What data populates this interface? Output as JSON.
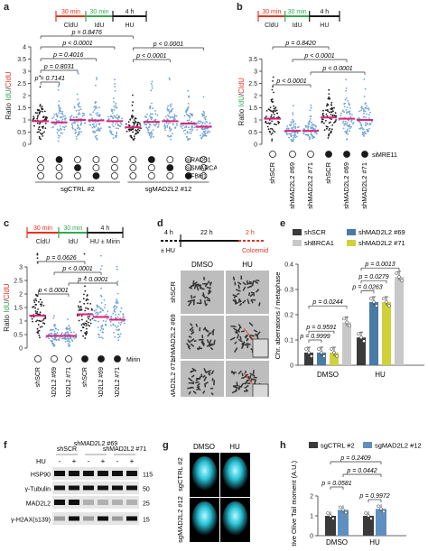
{
  "colors": {
    "red": "#e8301f",
    "green": "#33a852",
    "blue_dots": "#6fa3d8",
    "black": "#1a1a1a",
    "magenta": "#e0217b",
    "gray": "#8c8c8c",
    "scr": "#3a3a3a",
    "brca1": "#c8c8c8",
    "mad69": "#4a7aa6",
    "mad71": "#cfd13a",
    "sg": "#3a3a3a",
    "sgmad": "#5f8fc0"
  },
  "panels": {
    "a": {
      "letter": "a",
      "timeline": {
        "seg1": "30 min",
        "seg2": "30 min",
        "seg3": "4 h",
        "lab1": "CldU",
        "lab2": "IdU",
        "lab3": "HU"
      },
      "ylabel_pre": "Ratio ",
      "ylabel_a": "IdU",
      "ylabel_b": "/",
      "ylabel_c": "CldU",
      "yticks": [
        "0",
        "0.5",
        "1",
        "1.5",
        "2",
        "2.5",
        "3",
        "3.5",
        "4"
      ],
      "pvals_left": [
        "p < 0.0001",
        "p = 0.4016",
        "p = 0.8031",
        "p = 0.7141"
      ],
      "pvals_right": [
        "p = 0.8476",
        "p < 0.0001",
        "p < 0.0001"
      ],
      "rows": [
        "siRAD51",
        "siSMARCAL1",
        "siFBH1"
      ],
      "groups": [
        "sgCTRL #2",
        "sgMAD2L2 #12"
      ],
      "means": [
        0.95,
        0.9,
        1.0,
        0.98,
        0.95,
        0.7,
        0.92,
        0.95,
        0.85,
        0.72
      ]
    },
    "b": {
      "letter": "b",
      "timeline": {
        "seg1": "30 min",
        "seg2": "30 min",
        "seg3": "4 h",
        "lab1": "CldU",
        "lab2": "IdU",
        "lab3": "HU"
      },
      "ylabel_pre": "Ratio ",
      "ylabel_a": "IdU",
      "ylabel_b": "/",
      "ylabel_c": "CldU",
      "yticks": [
        "0",
        "0.5",
        "1",
        "1.5",
        "2",
        "2.5",
        "3",
        "3.5"
      ],
      "pvals": [
        "p = 0.8420",
        "p < 0.0001",
        "p < 0.0001",
        "p < 0.0001"
      ],
      "xlabels": [
        "shSCR",
        "shMAD2L2 #69",
        "shMAD2L2 #71",
        "shSCR",
        "shMAD2L2 #69",
        "shMAD2L2 #71"
      ],
      "extra": "siMRE11",
      "means": [
        1.05,
        0.55,
        0.55,
        1.1,
        1.05,
        1.0
      ]
    },
    "c": {
      "letter": "c",
      "timeline": {
        "seg1": "30 min",
        "seg2": "30 min",
        "seg3": "4 h",
        "lab1": "CldU",
        "lab2": "IdU",
        "lab3": "HU ± Mirin"
      },
      "ylabel_pre": "Ratio ",
      "ylabel_a": "IdU",
      "ylabel_b": "/",
      "ylabel_c": "CldU",
      "yticks": [
        "0",
        "0.5",
        "1",
        "1.5",
        "2",
        "2.5",
        "3"
      ],
      "pvals": [
        "p = 0.0626",
        "p < 0.0001",
        "p < 0.0001",
        "p < 0.0001"
      ],
      "xlabels": [
        "shSCR",
        "shMAD2L2 #69",
        "shMAD2L2 #71",
        "shSCR",
        "shMAD2L2 #69",
        "shMAD2L2 #71"
      ],
      "extra": "Mirin",
      "means": [
        1.2,
        0.45,
        0.45,
        1.25,
        1.15,
        1.05
      ]
    },
    "d": {
      "letter": "d",
      "t1": "4 h",
      "t2": "22 h",
      "t3": "2 h",
      "l1": "± HU",
      "l3": "Colcemid",
      "cols": [
        "DMSO",
        "HU"
      ],
      "rows": [
        "shSCR",
        "shMAD2L2 #69",
        "shMAD2L2 #71"
      ]
    },
    "e": {
      "letter": "e",
      "legend": [
        "shSCR",
        "shMAD2L2 #69",
        "shBRCA1",
        "shMAD2L2 #71"
      ],
      "ylabel": "Chr. aberrations / metaphase",
      "yticks": [
        "0",
        "0.1",
        "0.2",
        "0.3",
        "0.4"
      ],
      "xlabels": [
        "DMSO",
        "HU"
      ],
      "pvals": [
        "p = 0.0244",
        "p = 0.9591",
        "p = 0.9999",
        "p = 0.0013",
        "p = 0.0279",
        "p = 0.0263"
      ]
    },
    "f": {
      "letter": "f",
      "cols": [
        "shSCR",
        "shMAD2L2 #69",
        "shMAD2L2 #71"
      ],
      "hu_label": "HU",
      "signs": [
        "-",
        "+",
        "-",
        "+",
        "-",
        "+"
      ],
      "rows": [
        "HSP90",
        "γ-Tubulin",
        "MAD2L2",
        "γ-H2AX(s139)"
      ],
      "kda": [
        "115",
        "50",
        "25",
        "15"
      ]
    },
    "g": {
      "letter": "g",
      "cols": [
        "DMSO",
        "HU"
      ],
      "rows": [
        "sgCTRL #2",
        "sgMAD2L2 #12"
      ]
    },
    "h": {
      "letter": "h",
      "legend": [
        "sgCTRL #2",
        "sgMAD2L2 #12"
      ],
      "ylabel": "Relative Olive Tail moment (A.U.)",
      "yticks": [
        "0",
        "1",
        "2"
      ],
      "xlabels": [
        "DMSO",
        "HU"
      ],
      "pvals": [
        "p = 0.2409",
        "p = 0.0442",
        "p = 0.0581",
        "p = 0.9972"
      ]
    }
  }
}
